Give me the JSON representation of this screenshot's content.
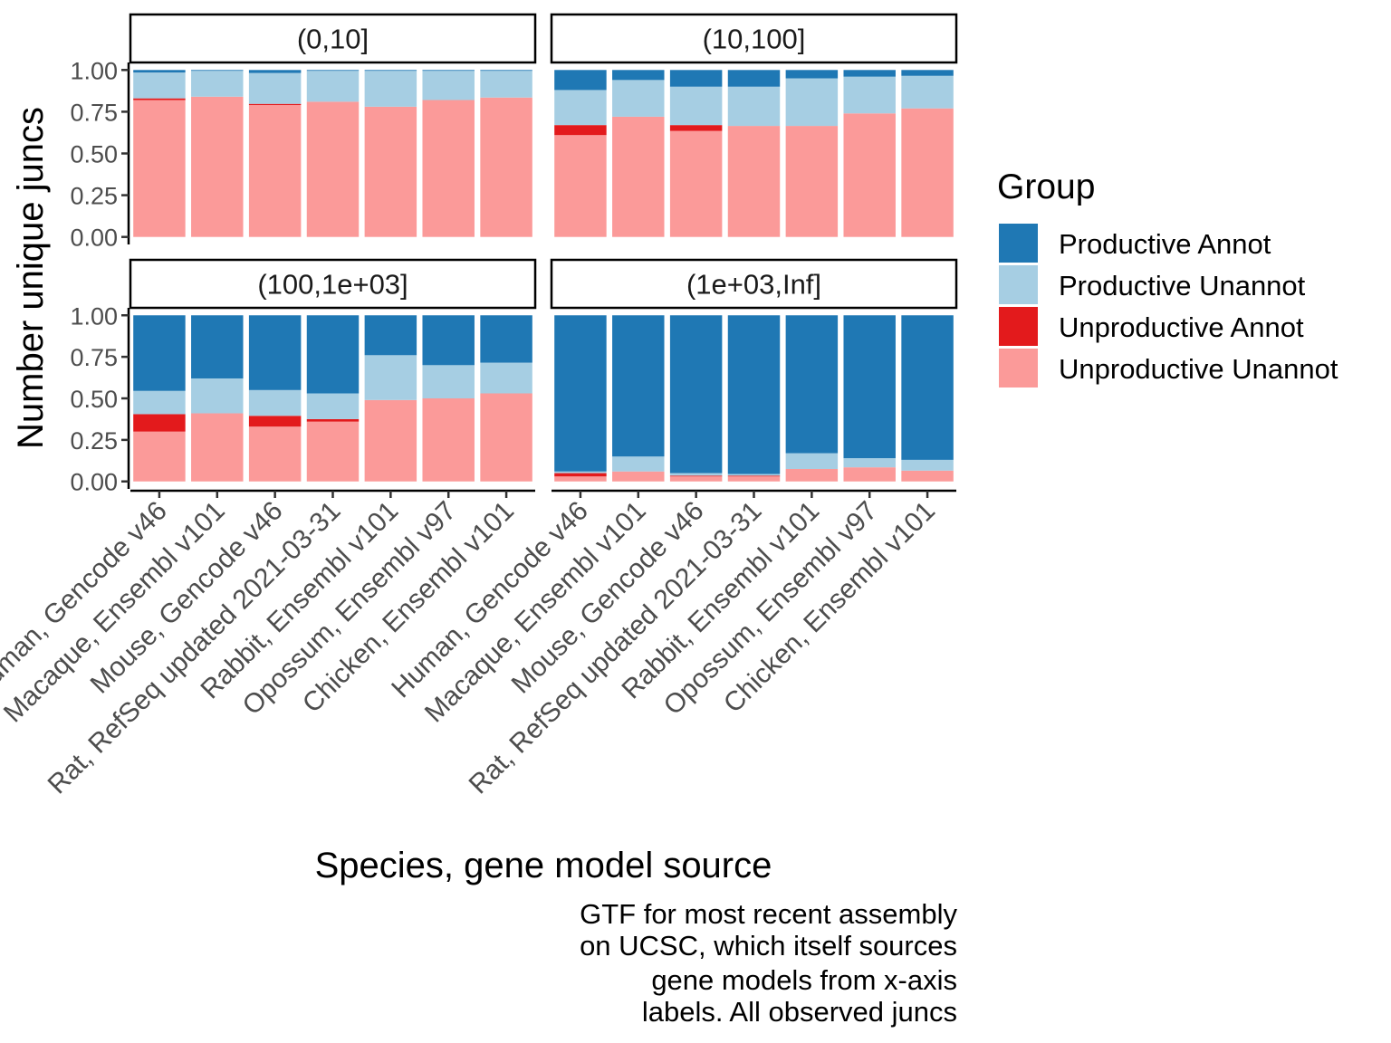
{
  "chart_data": {
    "type": "bar",
    "stacked": "fill",
    "ylabel": "Number unique juncs",
    "xlabel": "Species, gene model source",
    "ylim": [
      0,
      1
    ],
    "yticks": [
      "0.00",
      "0.25",
      "0.50",
      "0.75",
      "1.00"
    ],
    "categories": [
      "Human, Gencode v46",
      "Macaque, Ensembl v101",
      "Mouse, Gencode v46",
      "Rat, RefSeq updated 2021-03-31",
      "Rabbit, Ensembl v101",
      "Opossum, Ensembl v97",
      "Chicken, Ensembl v101"
    ],
    "legend": {
      "title": "Group",
      "position": "right",
      "items": [
        {
          "label": "Productive Annot",
          "color": "#1F78B4"
        },
        {
          "label": "Productive Unannot",
          "color": "#A6CEE3"
        },
        {
          "label": "Unproductive Annot",
          "color": "#E31A1C"
        },
        {
          "label": "Unproductive Unannot",
          "color": "#FB9A99"
        }
      ]
    },
    "facets": [
      {
        "label": "(0,10]",
        "series": [
          {
            "name": "Unproductive Unannot",
            "values": [
              0.82,
              0.84,
              0.79,
              0.81,
              0.78,
              0.82,
              0.835
            ]
          },
          {
            "name": "Unproductive Annot",
            "values": [
              0.01,
              0.0,
              0.007,
              0.0,
              0.0,
              0.0,
              0.0
            ]
          },
          {
            "name": "Productive Unannot",
            "values": [
              0.155,
              0.155,
              0.185,
              0.185,
              0.215,
              0.175,
              0.16
            ]
          },
          {
            "name": "Productive Annot",
            "values": [
              0.015,
              0.005,
              0.018,
              0.005,
              0.005,
              0.005,
              0.005
            ]
          }
        ]
      },
      {
        "label": "(10,100]",
        "series": [
          {
            "name": "Unproductive Unannot",
            "values": [
              0.61,
              0.72,
              0.635,
              0.665,
              0.665,
              0.74,
              0.77
            ]
          },
          {
            "name": "Unproductive Annot",
            "values": [
              0.06,
              0.0,
              0.035,
              0.0,
              0.0,
              0.0,
              0.0
            ]
          },
          {
            "name": "Productive Unannot",
            "values": [
              0.21,
              0.22,
              0.23,
              0.235,
              0.285,
              0.22,
              0.195
            ]
          },
          {
            "name": "Productive Annot",
            "values": [
              0.12,
              0.06,
              0.1,
              0.1,
              0.05,
              0.04,
              0.035
            ]
          }
        ]
      },
      {
        "label": "(100,1e+03]",
        "series": [
          {
            "name": "Unproductive Unannot",
            "values": [
              0.3,
              0.41,
              0.33,
              0.36,
              0.49,
              0.5,
              0.53
            ]
          },
          {
            "name": "Unproductive Annot",
            "values": [
              0.105,
              0.0,
              0.065,
              0.015,
              0.0,
              0.0,
              0.0
            ]
          },
          {
            "name": "Productive Unannot",
            "values": [
              0.14,
              0.21,
              0.155,
              0.155,
              0.27,
              0.2,
              0.185
            ]
          },
          {
            "name": "Productive Annot",
            "values": [
              0.455,
              0.38,
              0.45,
              0.47,
              0.24,
              0.3,
              0.285
            ]
          }
        ]
      },
      {
        "label": "(1e+03,Inf]",
        "series": [
          {
            "name": "Unproductive Unannot",
            "values": [
              0.03,
              0.06,
              0.03,
              0.03,
              0.075,
              0.085,
              0.065
            ]
          },
          {
            "name": "Unproductive Annot",
            "values": [
              0.02,
              0.0,
              0.005,
              0.005,
              0.0,
              0.0,
              0.0
            ]
          },
          {
            "name": "Productive Unannot",
            "values": [
              0.01,
              0.09,
              0.015,
              0.01,
              0.095,
              0.055,
              0.065
            ]
          },
          {
            "name": "Productive Annot",
            "values": [
              0.94,
              0.85,
              0.95,
              0.955,
              0.83,
              0.86,
              0.87
            ]
          }
        ]
      }
    ],
    "caption": [
      "GTF for most recent assembly",
      "on UCSC, which itself sources",
      "gene models from x-axis",
      "labels. All observed juncs"
    ]
  }
}
